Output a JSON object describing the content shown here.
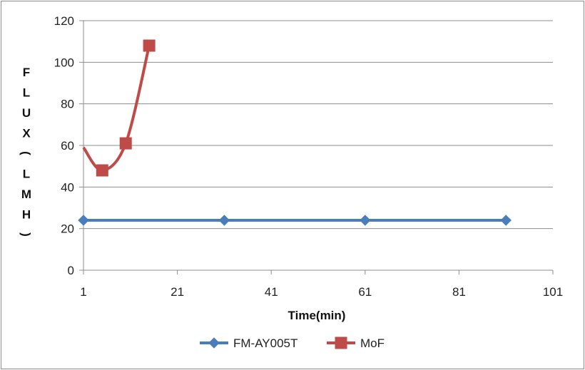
{
  "chart_data": {
    "type": "line",
    "title": "",
    "xlabel": "Time(min)",
    "ylabel": "FLUX(LMH)",
    "xlim": [
      1,
      101
    ],
    "ylim": [
      0,
      120
    ],
    "x_ticks": [
      "1",
      "21",
      "41",
      "61",
      "81",
      "101"
    ],
    "y_ticks": [
      "0",
      "20",
      "40",
      "60",
      "80",
      "100",
      "120"
    ],
    "grid": "horizontal",
    "legend": "bottom",
    "series": [
      {
        "name": "FM-AY005T",
        "color": "#4a7ebb",
        "marker": "diamond",
        "x": [
          1,
          31,
          61,
          91
        ],
        "y": [
          24,
          24,
          24,
          24
        ]
      },
      {
        "name": "MoF",
        "color": "#be4b48",
        "marker": "square",
        "x": [
          1,
          5,
          10,
          15
        ],
        "y": [
          59,
          48,
          61,
          108
        ]
      }
    ]
  }
}
